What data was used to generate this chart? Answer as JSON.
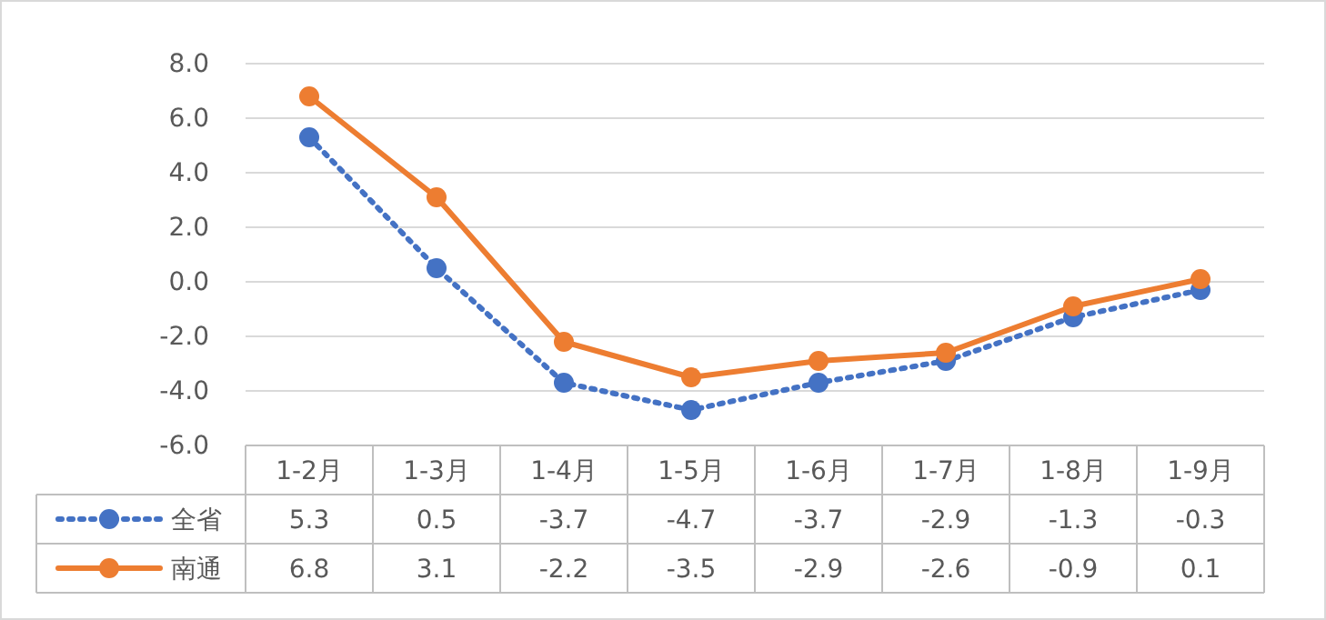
{
  "chart_data": {
    "type": "line",
    "categories": [
      "1-2月",
      "1-3月",
      "1-4月",
      "1-5月",
      "1-6月",
      "1-7月",
      "1-8月",
      "1-9月"
    ],
    "series": [
      {
        "name": "全省",
        "color": "#4472c4",
        "values": [
          5.3,
          0.5,
          -3.7,
          -4.7,
          -3.7,
          -2.9,
          -1.3,
          -0.3
        ],
        "line_style": "dotted",
        "marker": "circle"
      },
      {
        "name": "南通",
        "color": "#ed7d31",
        "values": [
          6.8,
          3.1,
          -2.2,
          -3.5,
          -2.9,
          -2.6,
          -0.9,
          0.1
        ],
        "line_style": "solid",
        "marker": "circle"
      }
    ],
    "ylim": [
      -6,
      8
    ],
    "yticks": [
      {
        "value": -6,
        "label": "-6.0"
      },
      {
        "value": -4,
        "label": "-4.0"
      },
      {
        "value": -2,
        "label": "-2.0"
      },
      {
        "value": 0,
        "label": "0.0"
      },
      {
        "value": 2,
        "label": "2.0"
      },
      {
        "value": 4,
        "label": "4.0"
      },
      {
        "value": 6,
        "label": "6.0"
      },
      {
        "value": 8,
        "label": "8.0"
      }
    ],
    "grid": "y",
    "data_labels": true,
    "legend": "bottom"
  }
}
